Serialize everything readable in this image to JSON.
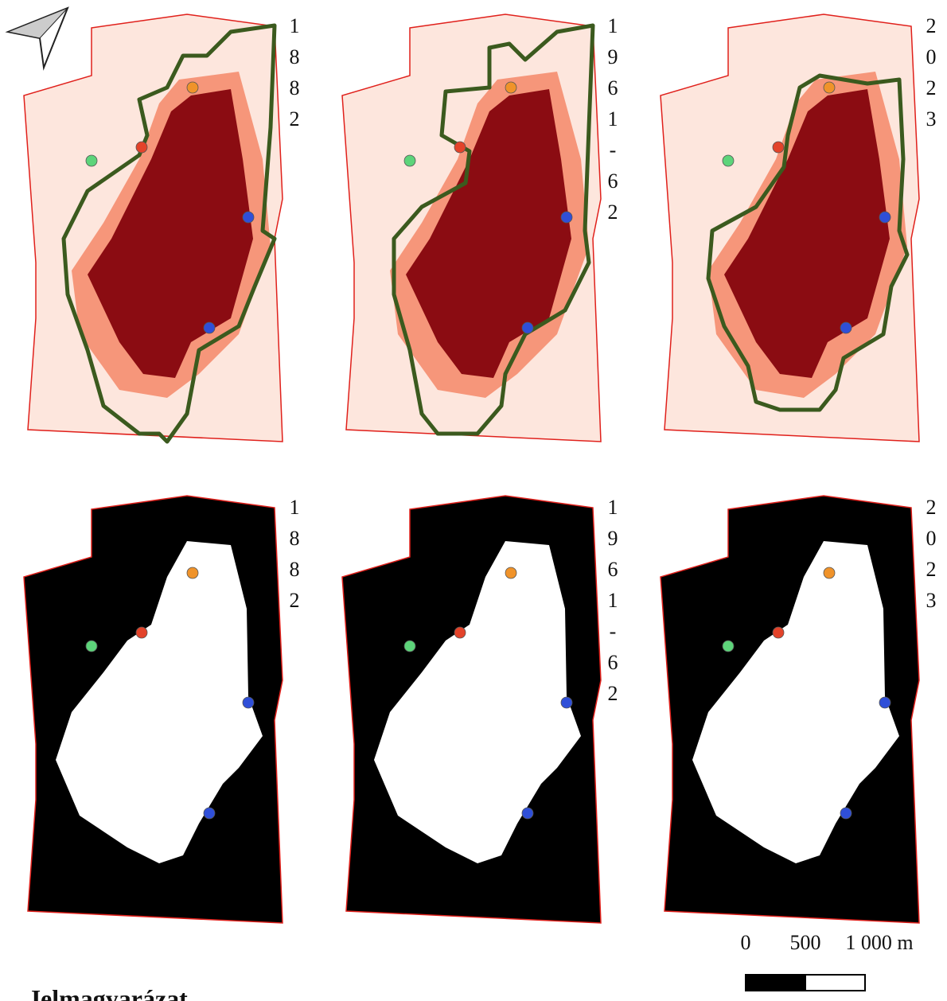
{
  "panels": [
    {
      "label": "1882"
    },
    {
      "label": "1961-62"
    },
    {
      "label": "2023"
    }
  ],
  "scale_bar": {
    "labels": [
      "0",
      "500",
      "1 000 m"
    ]
  },
  "legend": {
    "title": "Jelmagyarázat"
  }
}
